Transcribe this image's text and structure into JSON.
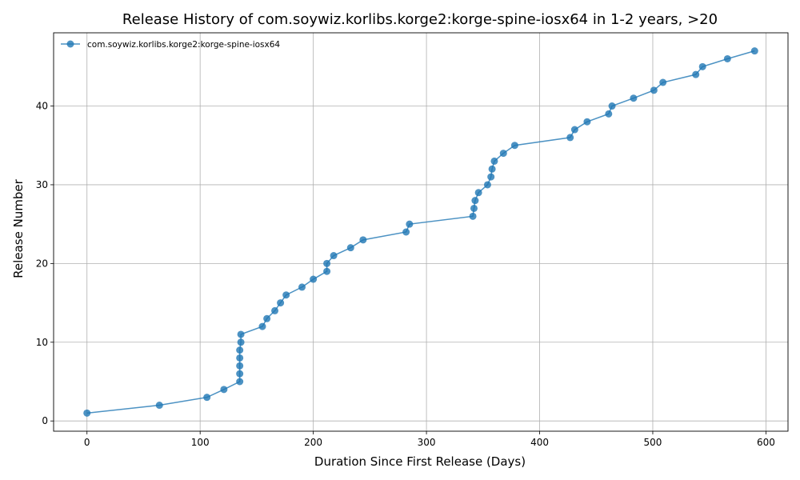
{
  "chart_data": {
    "type": "line",
    "title": "Release History of com.soywiz.korlibs.korge2:korge-spine-iosx64 in 1-2 years, >20",
    "xlabel": "Duration Since First Release (Days)",
    "ylabel": "Release Number",
    "xlim": [
      -29.5,
      619.5
    ],
    "ylim": [
      -1.3,
      49.3
    ],
    "xticks": [
      0,
      100,
      200,
      300,
      400,
      500,
      600
    ],
    "yticks": [
      0,
      10,
      20,
      30,
      40
    ],
    "grid": true,
    "legend_position": "top-left",
    "series": [
      {
        "name": "com.soywiz.korlibs.korge2:korge-spine-iosx64",
        "color": "#1f77b4",
        "marker": "circle",
        "x": [
          0,
          64,
          106,
          121,
          135,
          135,
          135,
          135,
          135,
          136,
          136,
          155,
          159,
          166,
          171,
          176,
          190,
          200,
          212,
          212,
          218,
          233,
          244,
          282,
          285,
          341,
          342,
          343,
          346,
          354,
          357,
          358,
          360,
          368,
          378,
          427,
          431,
          442,
          461,
          464,
          483,
          501,
          509,
          538,
          544,
          566,
          590
        ],
        "y": [
          1,
          2,
          3,
          4,
          5,
          6,
          7,
          8,
          9,
          10,
          11,
          12,
          13,
          14,
          15,
          16,
          17,
          18,
          19,
          20,
          21,
          22,
          23,
          24,
          25,
          26,
          27,
          28,
          29,
          30,
          31,
          32,
          33,
          34,
          35,
          36,
          37,
          38,
          39,
          40,
          41,
          42,
          43,
          44,
          45,
          46,
          47
        ]
      }
    ]
  }
}
